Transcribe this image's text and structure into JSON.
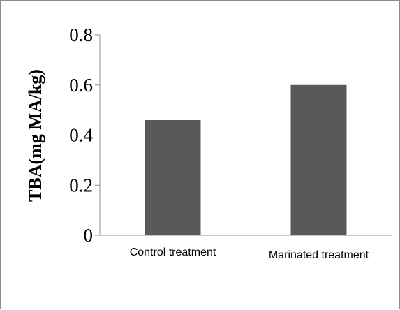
{
  "chart_data": {
    "type": "bar",
    "categories": [
      "Control treatment",
      "Marinated treatment"
    ],
    "values": [
      0.46,
      0.6
    ],
    "title": "",
    "xlabel": "",
    "ylabel": "TBA(mg MA/kg)",
    "ylim": [
      0,
      0.8
    ],
    "yticks": [
      "0",
      "0.2",
      "0.4",
      "0.6",
      "0.8"
    ],
    "grid": false,
    "legend": "none",
    "bar_color": "#595959",
    "axis_color": "#8c8c8c"
  }
}
